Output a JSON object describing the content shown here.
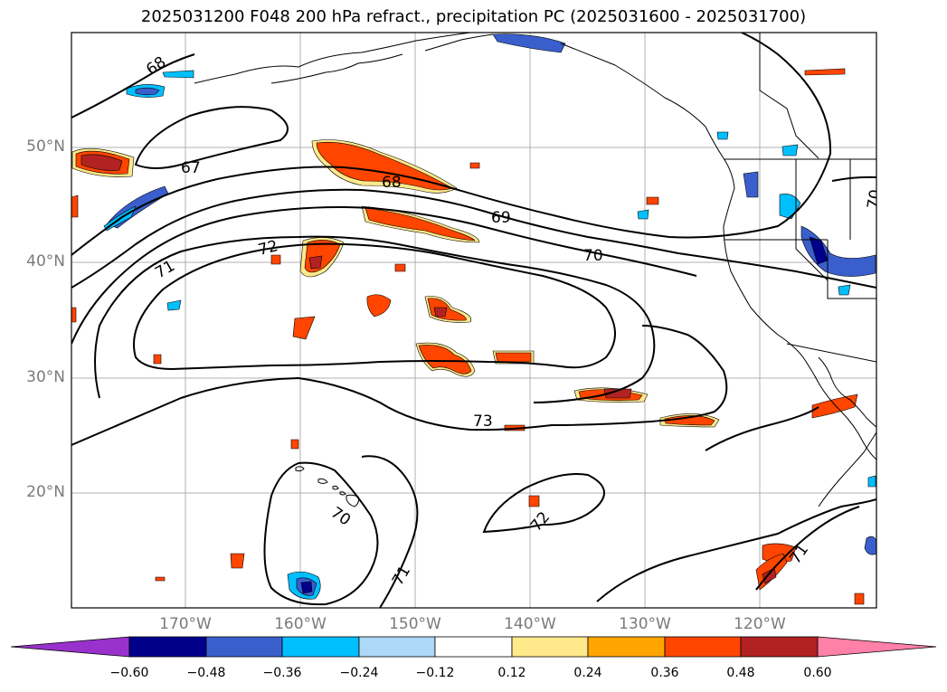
{
  "title": "2025031200 F048 200 hPa refract., precipitation PC (2025031600 - 2025031700)",
  "lat_labels": [
    "50°N",
    "40°N",
    "30°N",
    "20°N"
  ],
  "lon_labels": [
    "170°W",
    "160°W",
    "150°W",
    "140°W",
    "130°W",
    "120°W"
  ],
  "contour_labels": [
    "68",
    "67",
    "68",
    "69",
    "70",
    "71",
    "72",
    "73",
    "70",
    "71",
    "72",
    "71",
    "70"
  ],
  "colorbar": {
    "ticks": [
      "−0.60",
      "−0.48",
      "−0.36",
      "−0.24",
      "−0.12",
      "0.12",
      "0.24",
      "0.36",
      "0.48",
      "0.60"
    ],
    "colors": [
      "#9932cc",
      "#00008b",
      "#3a5fcd",
      "#00bfff",
      "#add8f7",
      "#ffffff",
      "#ffe98a",
      "#ffa500",
      "#ff4500",
      "#b22222",
      "#ff80a8"
    ]
  },
  "precip_colors": {
    "neg_dark": "#00008b",
    "neg_mid": "#3a5fcd",
    "neg_light": "#00bfff",
    "pos_light": "#ffe98a",
    "pos_mid": "#ffa500",
    "pos_strong": "#ff4500",
    "pos_dark": "#b22222"
  }
}
